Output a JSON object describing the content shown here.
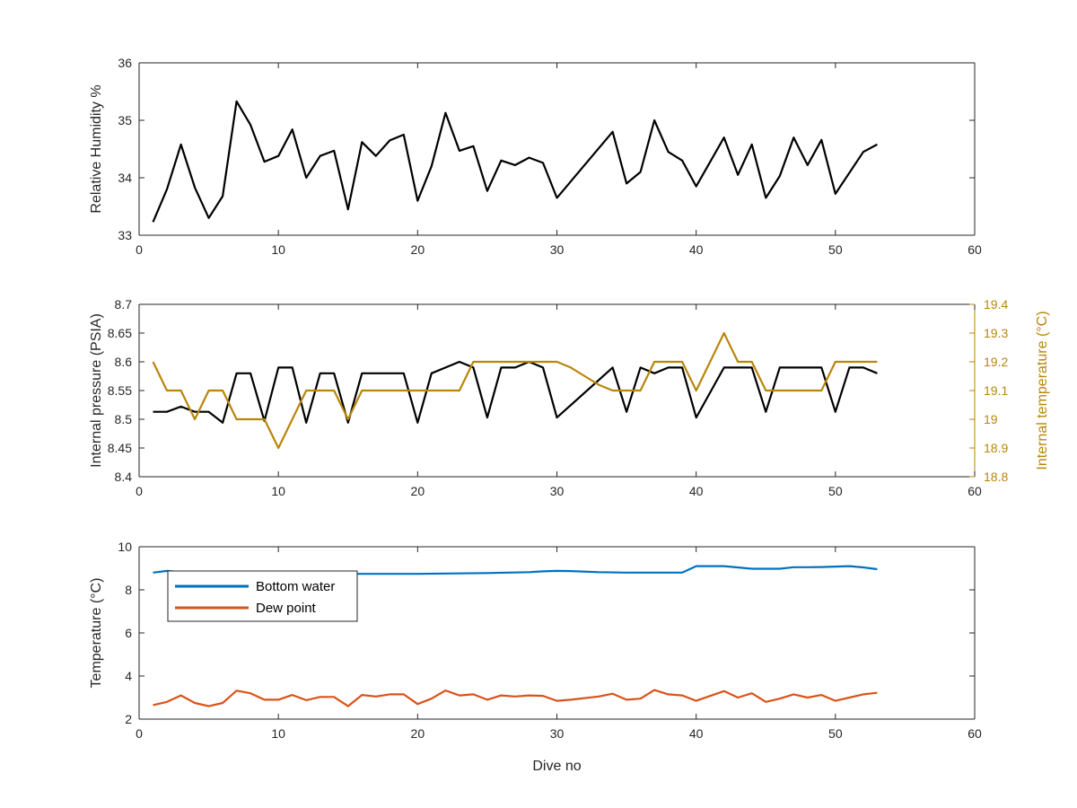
{
  "chart_data": [
    {
      "type": "line",
      "xlabel": "",
      "ylabel": "Relative Humidity %",
      "xlim": [
        0,
        60
      ],
      "ylim": [
        33,
        36
      ],
      "xticks": [
        0,
        10,
        20,
        30,
        40,
        50,
        60
      ],
      "yticks": [
        33,
        34,
        35,
        36
      ],
      "grid": false,
      "series": [
        {
          "color": "#000000",
          "points": [
            [
              1,
              33.23
            ],
            [
              2,
              33.8
            ],
            [
              3,
              34.58
            ],
            [
              4,
              33.83
            ],
            [
              5,
              33.3
            ],
            [
              6,
              33.68
            ],
            [
              7,
              35.33
            ],
            [
              8,
              34.92
            ],
            [
              9,
              34.28
            ],
            [
              10,
              34.38
            ],
            [
              11,
              34.84
            ],
            [
              12,
              34.0
            ],
            [
              13,
              34.38
            ],
            [
              14,
              34.47
            ],
            [
              15,
              33.45
            ],
            [
              16,
              34.62
            ],
            [
              17,
              34.38
            ],
            [
              18,
              34.65
            ],
            [
              19,
              34.75
            ],
            [
              20,
              33.6
            ],
            [
              21,
              34.2
            ],
            [
              22,
              35.13
            ],
            [
              23,
              34.47
            ],
            [
              24,
              34.55
            ],
            [
              25,
              33.77
            ],
            [
              26,
              34.3
            ],
            [
              27,
              34.22
            ],
            [
              28,
              34.35
            ],
            [
              29,
              34.26
            ],
            [
              30,
              33.65
            ],
            [
              34,
              34.8
            ],
            [
              35,
              33.9
            ],
            [
              36,
              34.1
            ],
            [
              37,
              35.0
            ],
            [
              38,
              34.45
            ],
            [
              39,
              34.3
            ],
            [
              40,
              33.85
            ],
            [
              42,
              34.7
            ],
            [
              43,
              34.05
            ],
            [
              44,
              34.58
            ],
            [
              45,
              33.65
            ],
            [
              46,
              34.03
            ],
            [
              47,
              34.7
            ],
            [
              48,
              34.22
            ],
            [
              49,
              34.66
            ],
            [
              50,
              33.72
            ],
            [
              52,
              34.45
            ],
            [
              53,
              34.58
            ]
          ]
        }
      ]
    },
    {
      "type": "line",
      "xlabel": "",
      "ylabel": "Internal pressure (PSIA)",
      "y2label": "Internal temperature (°C)",
      "xlim": [
        0,
        60
      ],
      "ylim": [
        8.4,
        8.7
      ],
      "y2lim": [
        18.8,
        19.4
      ],
      "xticks": [
        0,
        10,
        20,
        30,
        40,
        50,
        60
      ],
      "yticks": [
        8.4,
        8.45,
        8.5,
        8.55,
        8.6,
        8.65,
        8.7
      ],
      "y2ticks": [
        18.8,
        18.9,
        19,
        19.1,
        19.2,
        19.3,
        19.4
      ],
      "grid": false,
      "series": [
        {
          "axis": "left",
          "color": "#000000",
          "points": [
            [
              1,
              8.513
            ],
            [
              2,
              8.513
            ],
            [
              3,
              8.522
            ],
            [
              4,
              8.513
            ],
            [
              5,
              8.513
            ],
            [
              6,
              8.494
            ],
            [
              7,
              8.58
            ],
            [
              8,
              8.58
            ],
            [
              9,
              8.497
            ],
            [
              10,
              8.59
            ],
            [
              11,
              8.59
            ],
            [
              12,
              8.494
            ],
            [
              13,
              8.58
            ],
            [
              14,
              8.58
            ],
            [
              15,
              8.494
            ],
            [
              16,
              8.58
            ],
            [
              17,
              8.58
            ],
            [
              18,
              8.58
            ],
            [
              19,
              8.58
            ],
            [
              20,
              8.494
            ],
            [
              21,
              8.58
            ],
            [
              22,
              8.59
            ],
            [
              23,
              8.6
            ],
            [
              24,
              8.59
            ],
            [
              25,
              8.503
            ],
            [
              26,
              8.59
            ],
            [
              27,
              8.59
            ],
            [
              28,
              8.6
            ],
            [
              29,
              8.59
            ],
            [
              30,
              8.503
            ],
            [
              34,
              8.59
            ],
            [
              35,
              8.513
            ],
            [
              36,
              8.59
            ],
            [
              37,
              8.58
            ],
            [
              38,
              8.59
            ],
            [
              39,
              8.59
            ],
            [
              40,
              8.503
            ],
            [
              42,
              8.59
            ],
            [
              43,
              8.59
            ],
            [
              44,
              8.59
            ],
            [
              45,
              8.513
            ],
            [
              46,
              8.59
            ],
            [
              47,
              8.59
            ],
            [
              48,
              8.59
            ],
            [
              49,
              8.59
            ],
            [
              50,
              8.513
            ],
            [
              51,
              8.59
            ],
            [
              52,
              8.59
            ],
            [
              53,
              8.58
            ]
          ]
        },
        {
          "axis": "right",
          "color": "#b8860b",
          "points": [
            [
              1,
              19.2
            ],
            [
              2,
              19.1
            ],
            [
              3,
              19.1
            ],
            [
              4,
              19.0
            ],
            [
              5,
              19.1
            ],
            [
              6,
              19.1
            ],
            [
              7,
              19.0
            ],
            [
              8,
              19.0
            ],
            [
              9,
              19.0
            ],
            [
              10,
              18.9
            ],
            [
              12,
              19.1
            ],
            [
              13,
              19.1
            ],
            [
              14,
              19.1
            ],
            [
              15,
              19.0
            ],
            [
              16,
              19.1
            ],
            [
              17,
              19.1
            ],
            [
              18,
              19.1
            ],
            [
              19,
              19.1
            ],
            [
              20,
              19.1
            ],
            [
              21,
              19.1
            ],
            [
              22,
              19.1
            ],
            [
              23,
              19.1
            ],
            [
              24,
              19.2
            ],
            [
              25,
              19.2
            ],
            [
              26,
              19.2
            ],
            [
              27,
              19.2
            ],
            [
              28,
              19.2
            ],
            [
              29,
              19.2
            ],
            [
              30,
              19.2
            ],
            [
              31,
              19.18
            ],
            [
              32,
              19.15
            ],
            [
              33,
              19.12
            ],
            [
              34,
              19.1
            ],
            [
              35,
              19.1
            ],
            [
              36,
              19.1
            ],
            [
              37,
              19.2
            ],
            [
              38,
              19.2
            ],
            [
              39,
              19.2
            ],
            [
              40,
              19.1
            ],
            [
              42,
              19.3
            ],
            [
              43,
              19.2
            ],
            [
              44,
              19.2
            ],
            [
              45,
              19.1
            ],
            [
              46,
              19.1
            ],
            [
              47,
              19.1
            ],
            [
              48,
              19.1
            ],
            [
              49,
              19.1
            ],
            [
              50,
              19.2
            ],
            [
              51,
              19.2
            ],
            [
              52,
              19.2
            ],
            [
              53,
              19.2
            ]
          ]
        }
      ]
    },
    {
      "type": "line",
      "xlabel": "Dive no",
      "ylabel": "Temperature (°C)",
      "xlim": [
        0,
        60
      ],
      "ylim": [
        2,
        10
      ],
      "xticks": [
        0,
        10,
        20,
        30,
        40,
        50,
        60
      ],
      "yticks": [
        2,
        4,
        6,
        8,
        10
      ],
      "grid": false,
      "legend_position": "top-left",
      "series": [
        {
          "name": "Bottom water",
          "color": "#0072bd",
          "points": [
            [
              1,
              8.8
            ],
            [
              2,
              8.88
            ],
            [
              3,
              8.82
            ],
            [
              5,
              8.74
            ],
            [
              10,
              8.74
            ],
            [
              15,
              8.74
            ],
            [
              20,
              8.74
            ],
            [
              25,
              8.78
            ],
            [
              28,
              8.82
            ],
            [
              29,
              8.86
            ],
            [
              30,
              8.88
            ],
            [
              31,
              8.87
            ],
            [
              33,
              8.82
            ],
            [
              35,
              8.8
            ],
            [
              39,
              8.8
            ],
            [
              40,
              9.1
            ],
            [
              42,
              9.1
            ],
            [
              44,
              8.98
            ],
            [
              46,
              8.98
            ],
            [
              47,
              9.05
            ],
            [
              48,
              9.05
            ],
            [
              49,
              9.06
            ],
            [
              50,
              9.08
            ],
            [
              51,
              9.1
            ],
            [
              52,
              9.04
            ],
            [
              53,
              8.96
            ]
          ]
        },
        {
          "name": "Dew point",
          "color": "#d95319",
          "points": [
            [
              1,
              2.65
            ],
            [
              2,
              2.8
            ],
            [
              3,
              3.1
            ],
            [
              4,
              2.75
            ],
            [
              5,
              2.6
            ],
            [
              6,
              2.75
            ],
            [
              7,
              3.32
            ],
            [
              8,
              3.2
            ],
            [
              9,
              2.9
            ],
            [
              10,
              2.9
            ],
            [
              11,
              3.12
            ],
            [
              12,
              2.88
            ],
            [
              13,
              3.03
            ],
            [
              14,
              3.03
            ],
            [
              15,
              2.6
            ],
            [
              16,
              3.12
            ],
            [
              17,
              3.05
            ],
            [
              18,
              3.15
            ],
            [
              19,
              3.15
            ],
            [
              20,
              2.7
            ],
            [
              21,
              2.95
            ],
            [
              22,
              3.33
            ],
            [
              23,
              3.1
            ],
            [
              24,
              3.15
            ],
            [
              25,
              2.9
            ],
            [
              26,
              3.1
            ],
            [
              27,
              3.05
            ],
            [
              28,
              3.1
            ],
            [
              29,
              3.08
            ],
            [
              30,
              2.85
            ],
            [
              31,
              2.9
            ],
            [
              33,
              3.05
            ],
            [
              34,
              3.18
            ],
            [
              35,
              2.9
            ],
            [
              36,
              2.95
            ],
            [
              37,
              3.35
            ],
            [
              38,
              3.15
            ],
            [
              39,
              3.1
            ],
            [
              40,
              2.85
            ],
            [
              42,
              3.3
            ],
            [
              43,
              3.0
            ],
            [
              44,
              3.2
            ],
            [
              45,
              2.8
            ],
            [
              46,
              2.95
            ],
            [
              47,
              3.15
            ],
            [
              48,
              3.0
            ],
            [
              49,
              3.12
            ],
            [
              50,
              2.85
            ],
            [
              51,
              3.0
            ],
            [
              52,
              3.15
            ],
            [
              53,
              3.22
            ]
          ]
        }
      ]
    }
  ]
}
